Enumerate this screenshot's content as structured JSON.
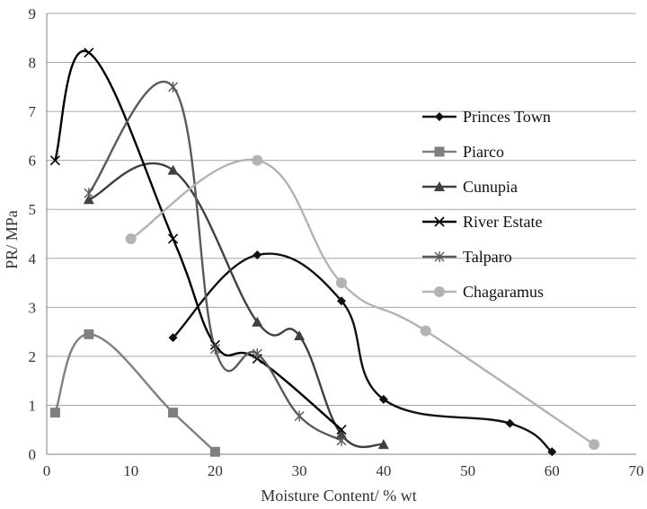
{
  "chart_data": {
    "type": "line",
    "title": "",
    "xlabel": "Moisture Content/ % wt",
    "ylabel": "PR/ MPa",
    "xlim": [
      0,
      70
    ],
    "ylim": [
      0,
      9
    ],
    "xticks": [
      0,
      10,
      20,
      30,
      40,
      50,
      60,
      70
    ],
    "yticks": [
      0,
      1,
      2,
      3,
      4,
      5,
      6,
      7,
      8,
      9
    ],
    "grid": "horizontal",
    "legend": "right",
    "series": [
      {
        "name": "Princes Town",
        "color": "#111111",
        "marker": "diamond",
        "x": [
          15,
          25,
          35,
          40,
          55,
          60
        ],
        "y": [
          2.38,
          4.07,
          3.13,
          1.12,
          0.63,
          0.05
        ]
      },
      {
        "name": "Piarco",
        "color": "#808080",
        "marker": "square",
        "x": [
          1,
          5,
          15,
          20
        ],
        "y": [
          0.85,
          2.45,
          0.85,
          0.05
        ]
      },
      {
        "name": "Cunupia",
        "color": "#404040",
        "marker": "triangle",
        "x": [
          5,
          15,
          25,
          30,
          35,
          40
        ],
        "y": [
          5.2,
          5.8,
          2.7,
          2.42,
          0.4,
          0.2
        ]
      },
      {
        "name": "River Estate",
        "color": "#000000",
        "marker": "x",
        "x": [
          1,
          5,
          15,
          20,
          25,
          35
        ],
        "y": [
          6.0,
          8.2,
          4.4,
          2.23,
          1.95,
          0.5
        ]
      },
      {
        "name": "Talparo",
        "color": "#5a5a5a",
        "marker": "star",
        "x": [
          5,
          15,
          20,
          25,
          30,
          35
        ],
        "y": [
          5.33,
          7.5,
          2.15,
          2.05,
          0.78,
          0.28
        ]
      },
      {
        "name": "Chagaramus",
        "color": "#b3b3b3",
        "marker": "circle",
        "x": [
          10,
          25,
          35,
          45,
          65
        ],
        "y": [
          4.4,
          6.0,
          3.5,
          2.52,
          0.2
        ]
      }
    ]
  }
}
